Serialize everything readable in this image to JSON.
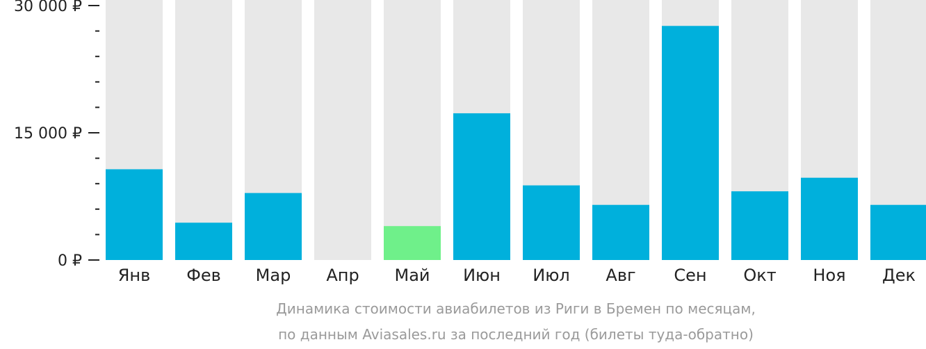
{
  "chart_data": {
    "type": "bar",
    "categories": [
      "Янв",
      "Фев",
      "Мар",
      "Апр",
      "Май",
      "Июн",
      "Июл",
      "Авг",
      "Сен",
      "Окт",
      "Ноя",
      "Дек"
    ],
    "values": [
      10700,
      4400,
      7900,
      null,
      4000,
      17300,
      8800,
      6500,
      27600,
      8100,
      9700,
      6500
    ],
    "highlight_index": 4,
    "ylim": [
      0,
      30000
    ],
    "yticks": [
      {
        "value": 0,
        "label": "0 ₽"
      },
      {
        "value": 15000,
        "label": "15 000 ₽"
      },
      {
        "value": 30000,
        "label": "30 000 ₽"
      }
    ],
    "minor_tick_step": 3000,
    "colors": {
      "bar": "#00b0dc",
      "highlight": "#6ff08a",
      "background_bar": "#e8e8e8",
      "axis": "#222222",
      "caption": "#9a9a9a"
    },
    "caption_lines": [
      "Динамика стоимости авиабилетов из Риги в Бремен по месяцам,",
      "по данным Aviasales.ru за последний год (билеты туда-обратно)"
    ]
  }
}
